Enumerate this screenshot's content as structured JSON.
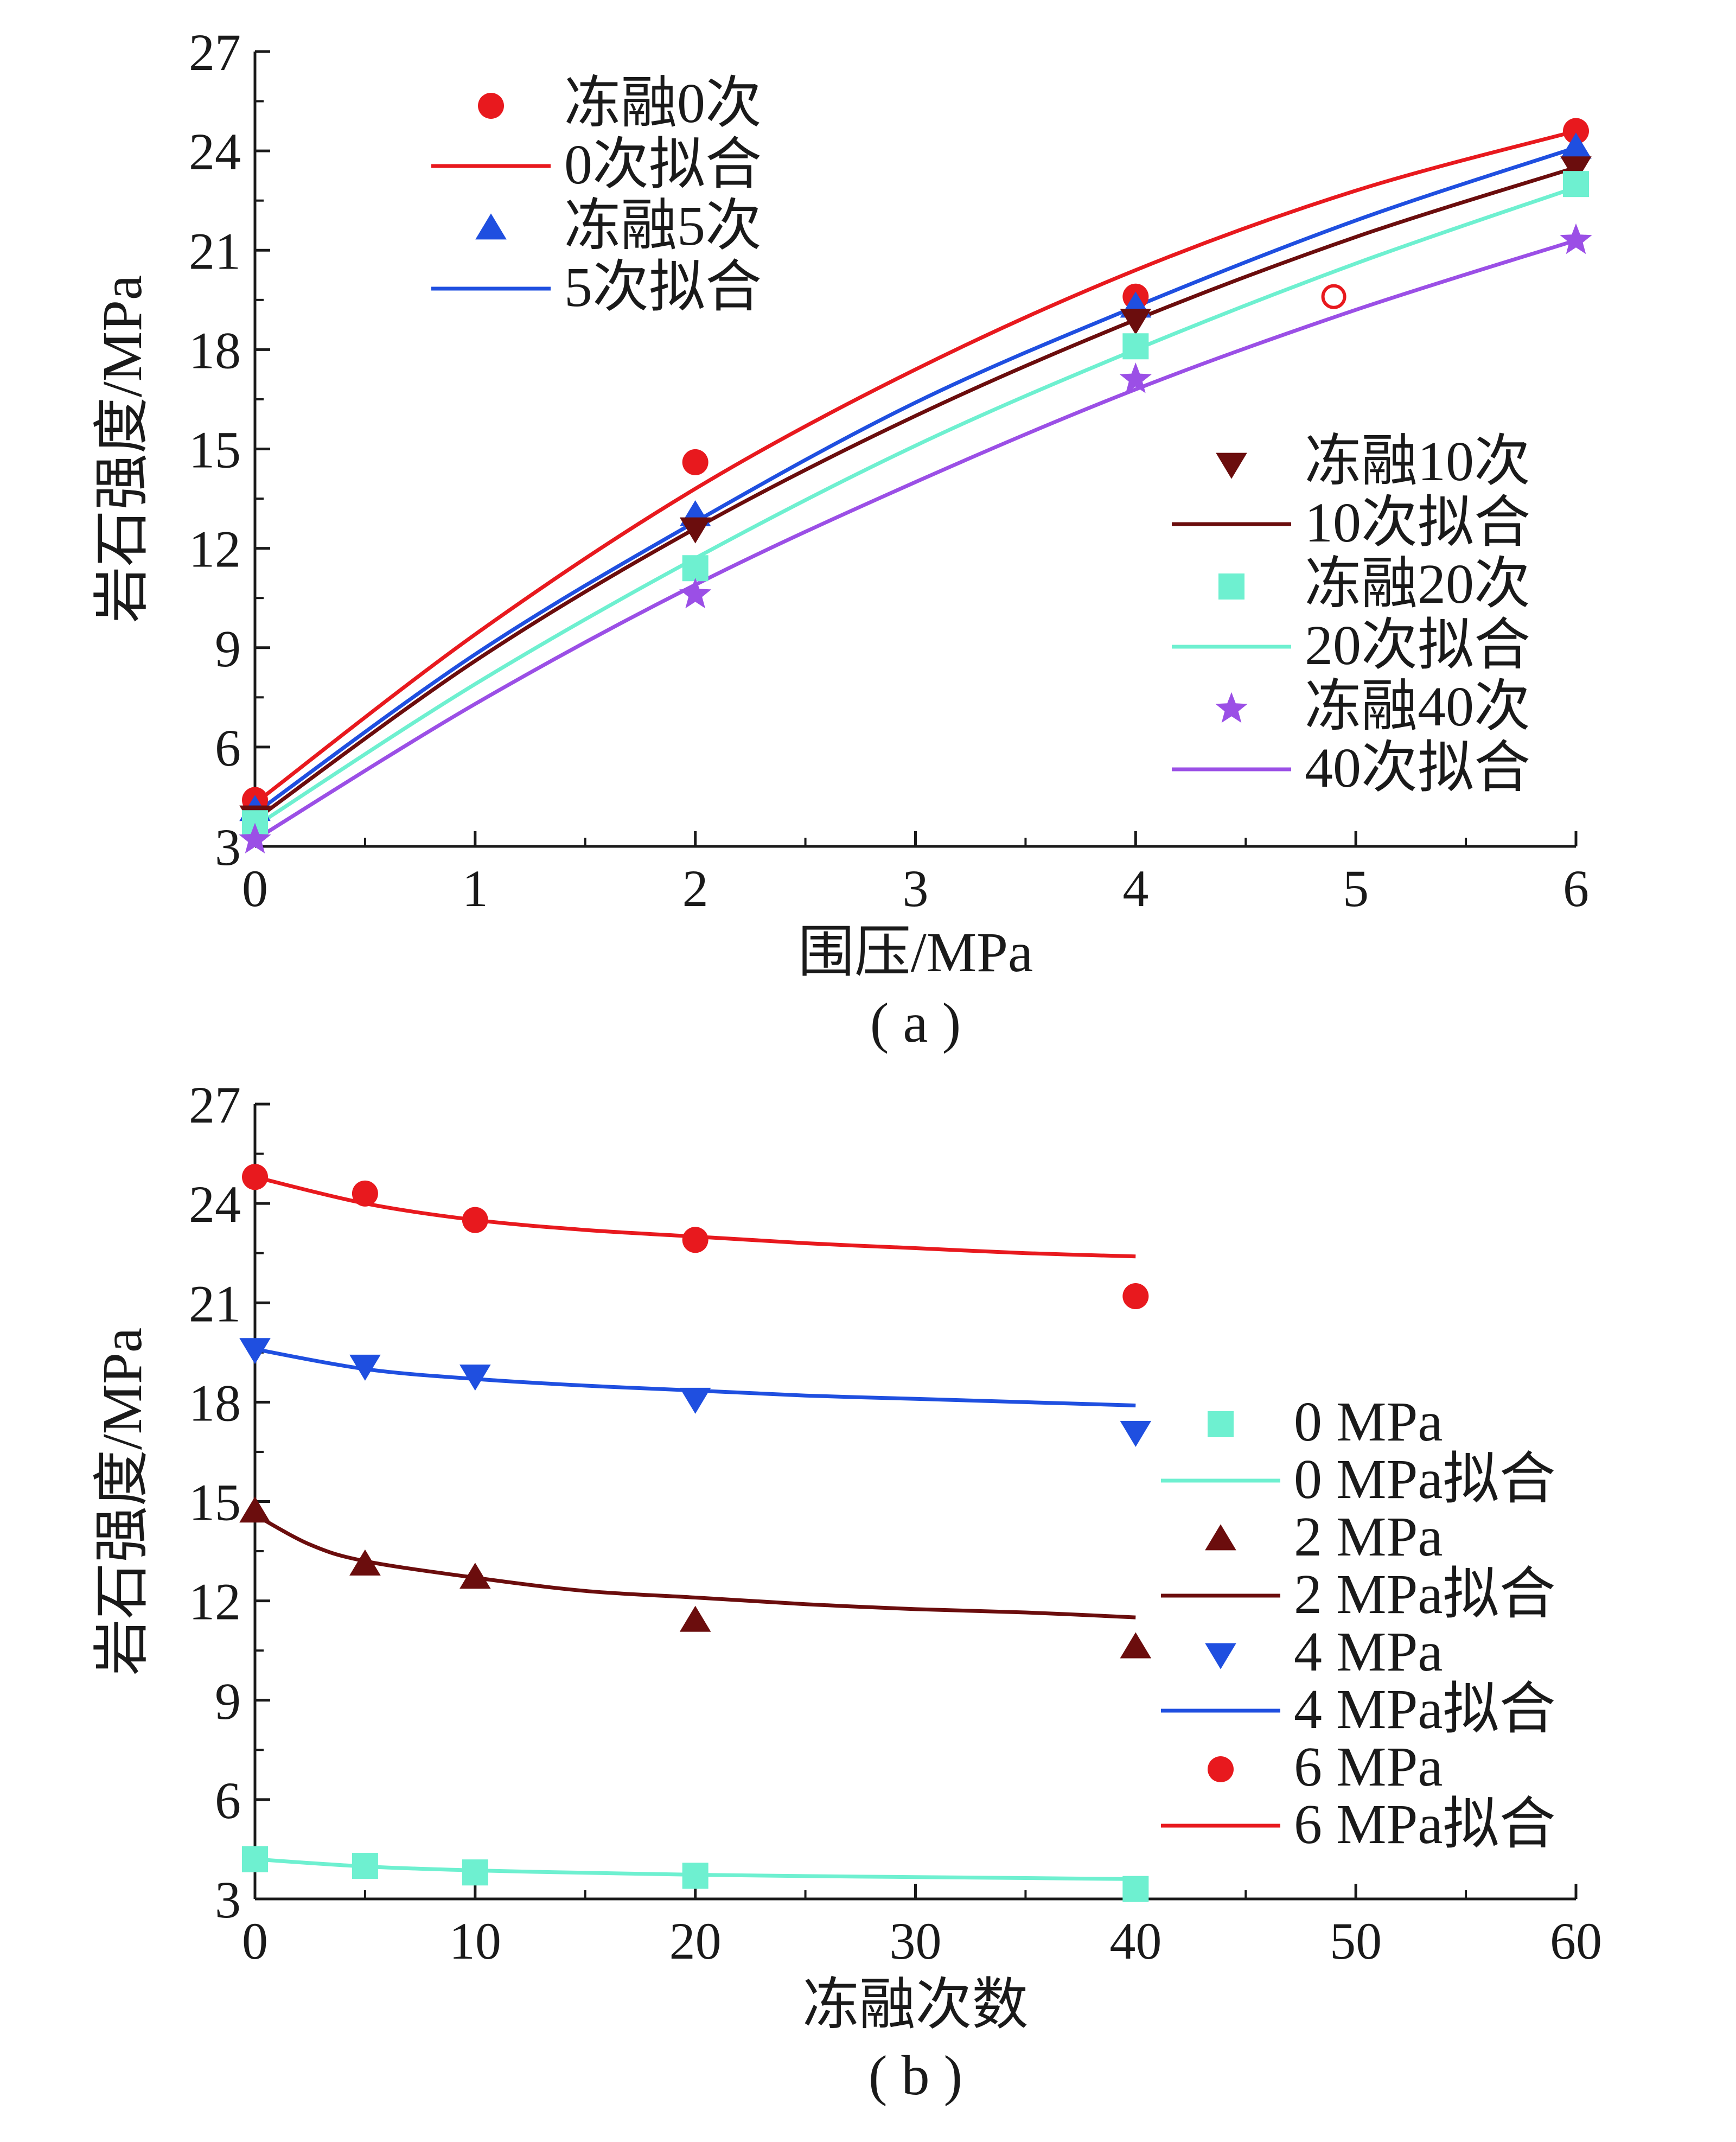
{
  "chart_data": [
    {
      "type": "scatter",
      "caption": "( a )",
      "xlabel": "围压/MPa",
      "ylabel": "岩石强度/MPa",
      "xlim": [
        0,
        6
      ],
      "ylim": [
        3,
        27
      ],
      "xticks": [
        "0",
        "1",
        "2",
        "3",
        "4",
        "5",
        "6"
      ],
      "yticks": [
        "3",
        "6",
        "9",
        "12",
        "15",
        "18",
        "21",
        "24",
        "27"
      ],
      "legend_position": "top-left and right-middle",
      "series": [
        {
          "name": "冻融0次",
          "fit_name": "0次拟合",
          "marker": "circle",
          "color": "#e8191e",
          "x": [
            0,
            2,
            4,
            6
          ],
          "y": [
            4.4,
            14.6,
            19.6,
            24.6
          ],
          "fit": {
            "x": [
              0,
              1,
              2,
              3,
              4,
              5,
              6
            ],
            "y": [
              4.3,
              9.4,
              13.8,
              17.4,
              20.4,
              22.8,
              24.6
            ]
          }
        },
        {
          "name": "冻融5次",
          "fit_name": "5次拟合",
          "marker": "triangle-up",
          "color": "#1f4fe0",
          "x": [
            0,
            2,
            4,
            6
          ],
          "y": [
            4.1,
            13.0,
            19.3,
            24.1
          ],
          "fit": {
            "x": [
              0,
              1,
              2,
              3,
              4,
              5,
              6
            ],
            "y": [
              4.0,
              8.8,
              12.8,
              16.4,
              19.3,
              21.9,
              24.1
            ]
          }
        },
        {
          "name": "冻融10次",
          "fit_name": "10次拟合",
          "marker": "triangle-down",
          "color": "#6b0d0d",
          "x": [
            0,
            2,
            4,
            6
          ],
          "y": [
            3.9,
            12.6,
            18.9,
            23.5
          ],
          "fit": {
            "x": [
              0,
              1,
              2,
              3,
              4,
              5,
              6
            ],
            "y": [
              3.8,
              8.6,
              12.6,
              16.0,
              18.9,
              21.4,
              23.5
            ]
          }
        },
        {
          "name": "冻融20次",
          "fit_name": "20次拟合",
          "marker": "square",
          "color": "#6ef0d0",
          "x": [
            0,
            2,
            4,
            6
          ],
          "y": [
            3.7,
            11.4,
            18.1,
            23.0
          ],
          "fit": {
            "x": [
              0,
              1,
              2,
              3,
              4,
              5,
              6
            ],
            "y": [
              3.6,
              7.9,
              11.7,
              15.1,
              18.0,
              20.6,
              22.9
            ]
          }
        },
        {
          "name": "冻融40次",
          "fit_name": "40次拟合",
          "marker": "star",
          "color": "#9b4fe6",
          "x": [
            0,
            2,
            4,
            6
          ],
          "y": [
            3.2,
            10.6,
            17.1,
            21.3
          ],
          "fit": {
            "x": [
              0,
              1,
              2,
              3,
              4,
              5,
              6
            ],
            "y": [
              3.2,
              7.3,
              10.9,
              14.0,
              16.8,
              19.2,
              21.3
            ]
          }
        }
      ],
      "annotations": [
        {
          "type": "open-circle",
          "x": 4.9,
          "y": 19.6,
          "color": "#e8191e"
        }
      ]
    },
    {
      "type": "scatter",
      "caption": "( b )",
      "xlabel": "冻融次数",
      "ylabel": "岩石强度/MPa",
      "xlim": [
        0,
        60
      ],
      "ylim": [
        3,
        27
      ],
      "xticks": [
        "0",
        "10",
        "20",
        "30",
        "40",
        "50",
        "60"
      ],
      "yticks": [
        "3",
        "6",
        "9",
        "12",
        "15",
        "18",
        "21",
        "24",
        "27"
      ],
      "legend_position": "right",
      "series": [
        {
          "name": "0 MPa",
          "fit_name": "0 MPa拟合",
          "marker": "square",
          "color": "#6ef0d0",
          "x": [
            0,
            5,
            10,
            20,
            40
          ],
          "y": [
            4.2,
            4.0,
            3.8,
            3.7,
            3.3
          ],
          "fit": {
            "x": [
              0,
              5,
              10,
              15,
              20,
              25,
              30,
              35,
              40
            ],
            "y": [
              4.2,
              3.98,
              3.86,
              3.79,
              3.73,
              3.69,
              3.66,
              3.63,
              3.6
            ]
          }
        },
        {
          "name": "2 MPa",
          "fit_name": "2 MPa拟合",
          "marker": "triangle-up",
          "color": "#6b0d0d",
          "x": [
            0,
            5,
            10,
            20,
            40
          ],
          "y": [
            14.7,
            13.1,
            12.7,
            11.4,
            10.6
          ],
          "fit": {
            "x": [
              0,
              2.5,
              5,
              10,
              15,
              20,
              25,
              30,
              35,
              40
            ],
            "y": [
              14.6,
              13.7,
              13.2,
              12.7,
              12.3,
              12.1,
              11.9,
              11.75,
              11.65,
              11.5
            ]
          }
        },
        {
          "name": "4 MPa",
          "fit_name": "4 MPa拟合",
          "marker": "triangle-down",
          "color": "#1f4fe0",
          "x": [
            0,
            5,
            10,
            20,
            40
          ],
          "y": [
            19.6,
            19.1,
            18.8,
            18.1,
            17.1
          ],
          "fit": {
            "x": [
              0,
              5,
              10,
              15,
              20,
              25,
              30,
              35,
              40
            ],
            "y": [
              19.6,
              19.0,
              18.7,
              18.5,
              18.35,
              18.2,
              18.1,
              18.0,
              17.9
            ]
          }
        },
        {
          "name": "6 MPa",
          "fit_name": "6 MPa拟合",
          "marker": "circle",
          "color": "#e8191e",
          "x": [
            0,
            5,
            10,
            20,
            40
          ],
          "y": [
            24.8,
            24.3,
            23.5,
            22.9,
            21.2
          ],
          "fit": {
            "x": [
              0,
              5,
              10,
              15,
              20,
              25,
              30,
              35,
              40
            ],
            "y": [
              24.8,
              24.0,
              23.5,
              23.2,
              23.0,
              22.8,
              22.65,
              22.5,
              22.4
            ]
          }
        }
      ]
    }
  ]
}
